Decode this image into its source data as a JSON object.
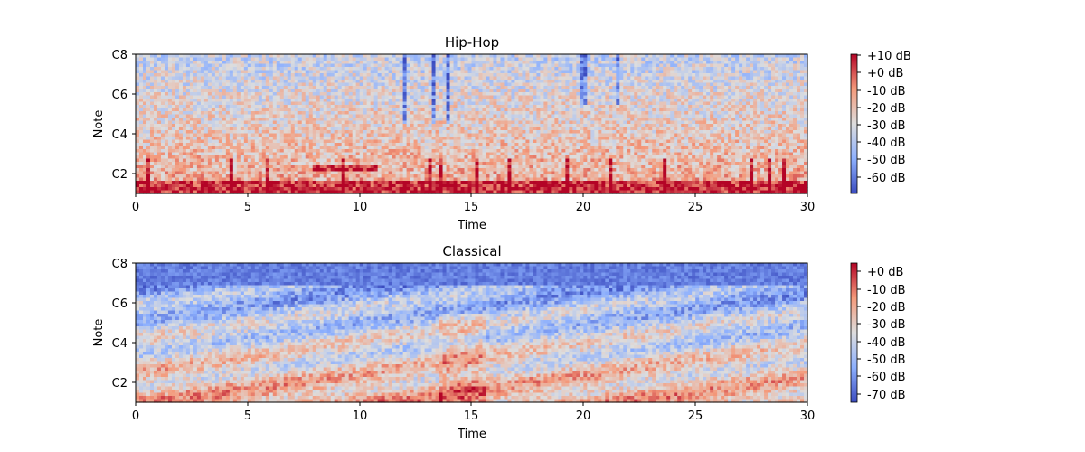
{
  "colors": {
    "colormap": "coolwarm",
    "low": "#3b4cc0",
    "mid": "#dddddd",
    "high": "#b40426",
    "axis": "#000000"
  },
  "chart_data": [
    {
      "type": "heatmap",
      "title": "Hip-Hop",
      "xlabel": "Time",
      "ylabel": "Note",
      "x_ticks": [
        "0",
        "5",
        "10",
        "15",
        "20",
        "25",
        "30"
      ],
      "y_ticks": [
        "C2",
        "C4",
        "C6",
        "C8"
      ],
      "xlim": [
        0,
        30
      ],
      "ylim_notes": [
        "C1",
        "C8"
      ],
      "colorbar": {
        "ticks": [
          "+10 dB",
          "+0 dB",
          "-10 dB",
          "-20 dB",
          "-30 dB",
          "-40 dB",
          "-50 dB",
          "-60 dB"
        ],
        "vmin": -70,
        "vmax": 13
      }
    },
    {
      "type": "heatmap",
      "title": "Classical",
      "xlabel": "Time",
      "ylabel": "Note",
      "x_ticks": [
        "0",
        "5",
        "10",
        "15",
        "20",
        "25",
        "30"
      ],
      "y_ticks": [
        "C2",
        "C4",
        "C6",
        "C8"
      ],
      "xlim": [
        0,
        30
      ],
      "ylim_notes": [
        "C1",
        "C8"
      ],
      "colorbar": {
        "ticks": [
          "+0 dB",
          "-10 dB",
          "-20 dB",
          "-30 dB",
          "-40 dB",
          "-50 dB",
          "-60 dB",
          "-70 dB"
        ],
        "vmin": -77,
        "vmax": 5
      }
    }
  ]
}
